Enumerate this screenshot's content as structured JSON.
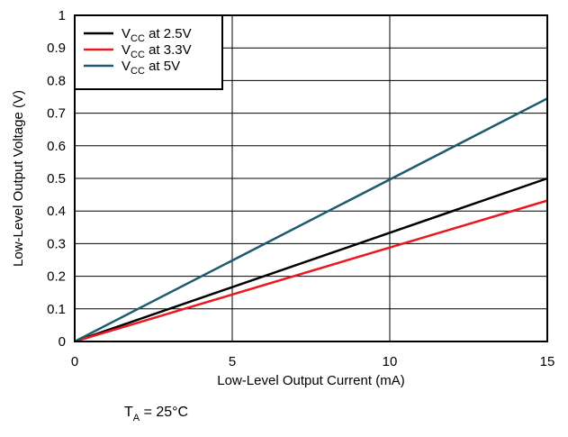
{
  "chart_data": {
    "type": "line",
    "title": "",
    "xlabel": "Low-Level Output Current (mA)",
    "ylabel": "Low-Level Output Voltage (V)",
    "xlim": [
      0,
      15
    ],
    "ylim": [
      0,
      1
    ],
    "x_ticks": [
      0,
      5,
      10,
      15
    ],
    "y_ticks": [
      0,
      0.1,
      0.2,
      0.3,
      0.4,
      0.5,
      0.6,
      0.7,
      0.8,
      0.9,
      1
    ],
    "grid": true,
    "legend_position": "top-left",
    "series": [
      {
        "name_main": "V",
        "name_sub": "CC",
        "name_rest": " at 2.5V",
        "color": "#000000",
        "x": [
          0,
          15
        ],
        "y": [
          0,
          0.5
        ]
      },
      {
        "name_main": "V",
        "name_sub": "CC",
        "name_rest": " at 3.3V",
        "color": "#e8191f",
        "x": [
          0,
          15
        ],
        "y": [
          0,
          0.432
        ]
      },
      {
        "name_main": "V",
        "name_sub": "CC",
        "name_rest": " at 5V",
        "color": "#1e5b6e",
        "x": [
          0,
          15
        ],
        "y": [
          0,
          0.745
        ]
      }
    ],
    "annotation": {
      "main": "T",
      "sub": "A",
      "rest": " = 25°C"
    }
  }
}
